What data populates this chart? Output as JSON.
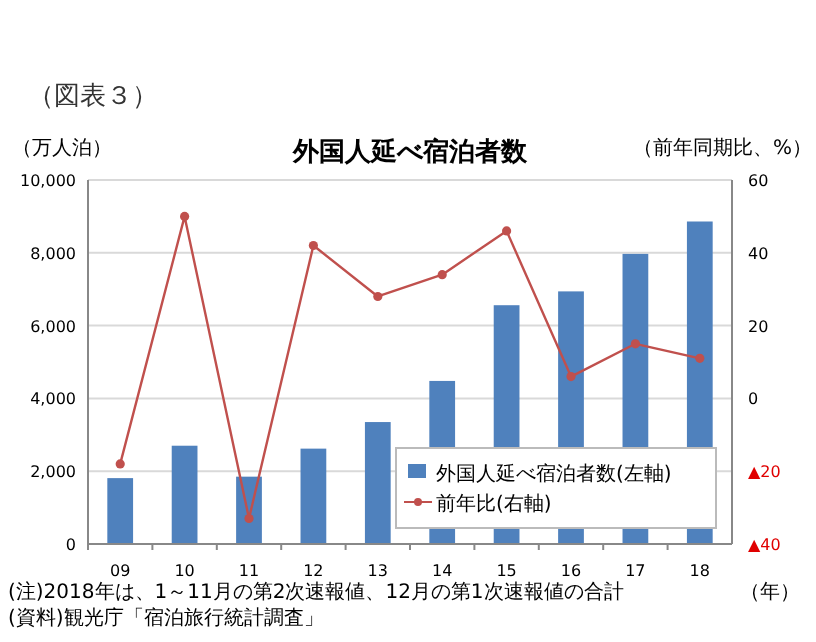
{
  "chart_data": {
    "type": "bar",
    "title": "外国人延べ宿泊者数",
    "xlabel": "（年）",
    "ylabel": "（万人泊）",
    "y2label": "（前年同期比、%）",
    "annotations": [
      "（図表３）",
      "(注)2018年は、1～11月の第2次速報値、12月の第1次速報値の合計",
      "(資料)観光庁「宿泊旅行統計調査」"
    ],
    "categories": [
      "09",
      "10",
      "11",
      "12",
      "13",
      "14",
      "15",
      "16",
      "17",
      "18"
    ],
    "series": [
      {
        "name": "外国人延べ宿泊者数(左軸)",
        "color": "#4f81bd",
        "values": [
          1810,
          2700,
          1850,
          2620,
          3350,
          4480,
          6560,
          6940,
          7970,
          8860
        ]
      },
      {
        "name": "前年比(右軸)",
        "type": "line",
        "axis": "y2",
        "color": "#c0504d",
        "marker": "circle",
        "values": [
          -18,
          50,
          -33,
          42,
          28,
          34,
          46,
          6,
          15,
          11
        ]
      }
    ],
    "ylim": [
      0,
      10000
    ],
    "yticks": [
      {
        "value": 0,
        "label": "0"
      },
      {
        "value": 2000,
        "label": "2,000"
      },
      {
        "value": 4000,
        "label": "4,000"
      },
      {
        "value": 6000,
        "label": "6,000"
      },
      {
        "value": 8000,
        "label": "8,000"
      },
      {
        "value": 10000,
        "label": "10,000"
      }
    ],
    "y2lim": [
      -40,
      60
    ],
    "y2ticks": [
      {
        "value": -40,
        "label": "▲40"
      },
      {
        "value": -20,
        "label": "▲20"
      },
      0,
      20,
      40,
      60
    ],
    "grid": "y",
    "legend": "bottom right"
  }
}
